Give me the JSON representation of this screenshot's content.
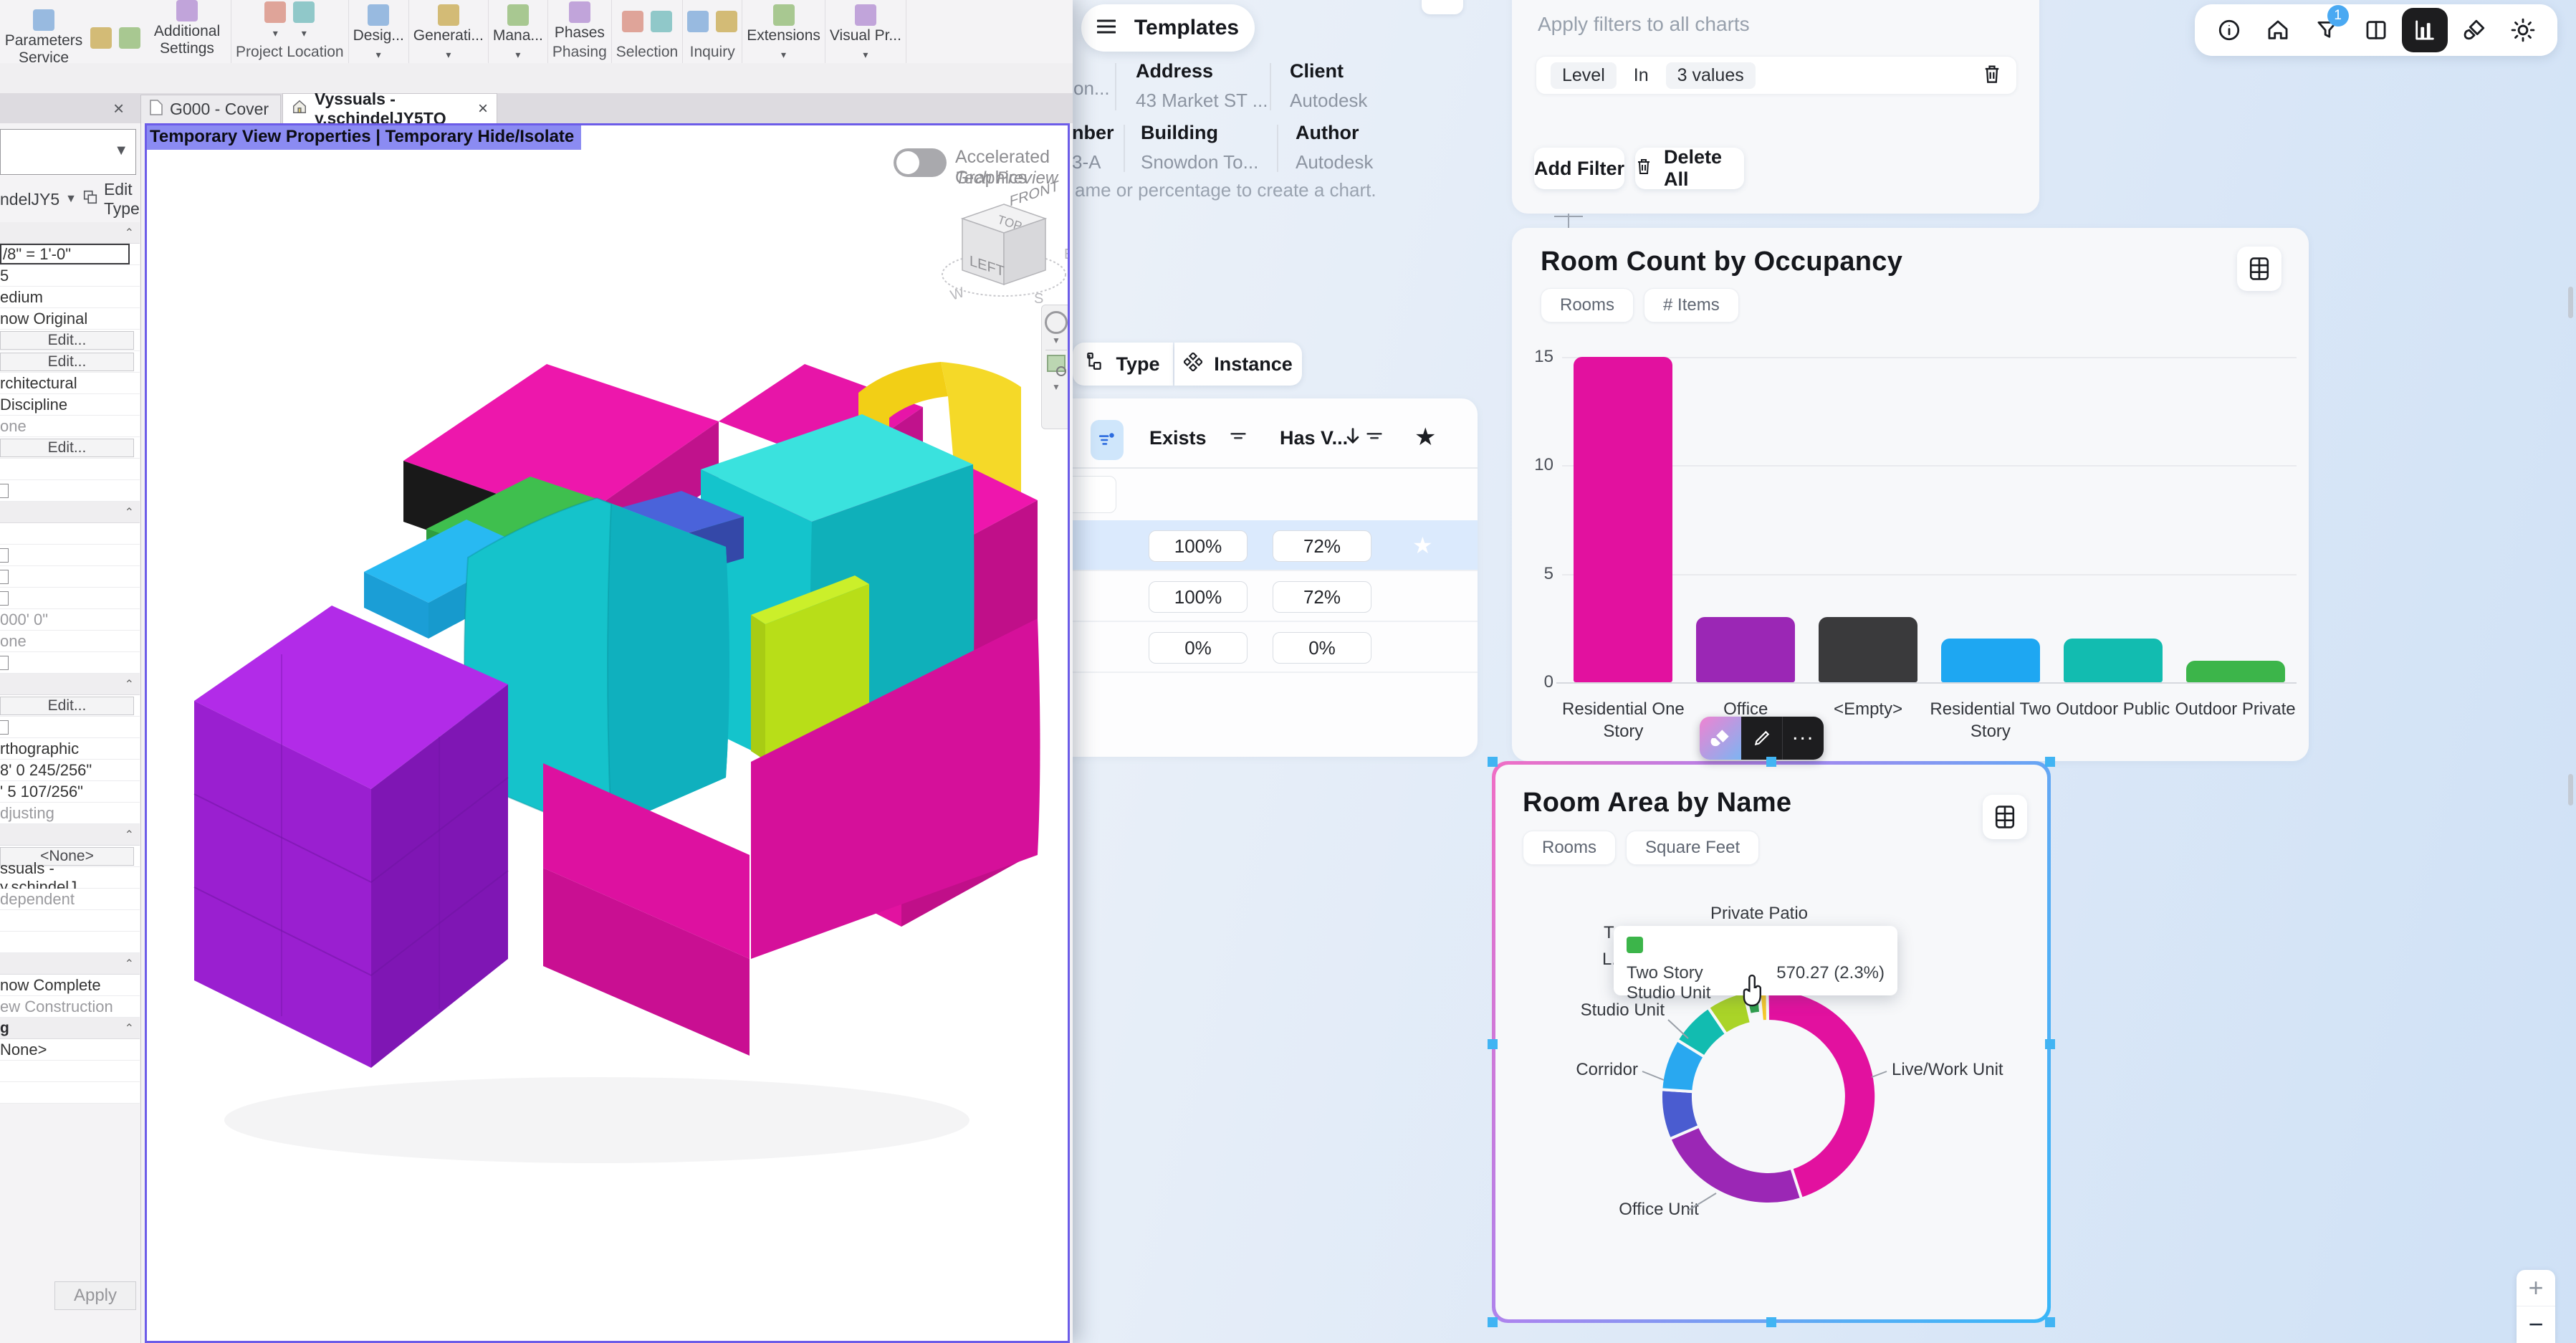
{
  "colors": {
    "accent_purple_border": "#6c5ce8",
    "dashboard_bg": "#e8eef7",
    "card_bg": "#f7f8fa",
    "selection_blue": "#41b4f3",
    "highlight_row": "#dbeafd",
    "badge_blue": "#4aa9f2"
  },
  "revit": {
    "ribbon": {
      "groups": [
        {
          "group_label": "Settings",
          "buttons": [
            {
              "label": "Parameters Service",
              "icon": "parameters-service-icon"
            },
            {
              "label": "",
              "icon": "settings-cluster-icon"
            },
            {
              "label": "",
              "icon": "settings-cluster2-icon"
            },
            {
              "label": "Additional Settings",
              "icon": "additional-settings-icon",
              "caret": true
            }
          ]
        },
        {
          "group_label": "Project Location",
          "buttons": [
            {
              "label": "",
              "icon": "coordinates-icon",
              "caret": true
            },
            {
              "label": "",
              "icon": "location-globe-icon",
              "caret": true
            }
          ]
        },
        {
          "group_label": "▼",
          "buttons": [
            {
              "label": "Desig...",
              "icon": "design-options-icon"
            }
          ]
        },
        {
          "group_label": "▼",
          "buttons": [
            {
              "label": "Generati...",
              "icon": "generative-design-icon"
            }
          ]
        },
        {
          "group_label": "▼",
          "buttons": [
            {
              "label": "Mana...",
              "icon": "manage-links-icon"
            }
          ]
        },
        {
          "group_label": "Phasing",
          "buttons": [
            {
              "label": "Phases",
              "icon": "phases-icon"
            }
          ]
        },
        {
          "group_label": "Selection",
          "buttons": [
            {
              "label": "",
              "icon": "selection-save-icon"
            },
            {
              "label": "",
              "icon": "selection-load-icon"
            }
          ]
        },
        {
          "group_label": "Inquiry",
          "buttons": [
            {
              "label": "",
              "icon": "element-ids-icon"
            },
            {
              "label": "",
              "icon": "warnings-icon"
            }
          ]
        },
        {
          "group_label": "▼",
          "buttons": [
            {
              "label": "Extensions",
              "icon": "extensions-icon"
            }
          ]
        },
        {
          "group_label": "▼",
          "buttons": [
            {
              "label": "Visual Pr...",
              "icon": "visual-programming-icon"
            }
          ]
        }
      ]
    },
    "tabs": [
      {
        "label": "G000 - Cover"
      },
      {
        "label": "Vyssuals - y.schindelJY5TQ",
        "close": "×"
      }
    ],
    "panel_close": "×",
    "viewport": {
      "overlay_text": "Temporary View Properties | Temporary Hide/Isolate",
      "accel_label": "Accelerated Graphics",
      "accel_sub": "Tech Preview",
      "viewcube": {
        "top": "TOP",
        "left": "LEFT",
        "front": "FRONT",
        "compass": [
          "W",
          "S",
          "E"
        ]
      }
    },
    "properties": {
      "type_selector": "ndelJY5",
      "edit_type": "Edit Type",
      "apply": "Apply",
      "rows": [
        {
          "t": "",
          "k": "header"
        },
        {
          "t": "/8\" = 1'-0\"",
          "k": "input"
        },
        {
          "t": "5",
          "k": "value"
        },
        {
          "t": "edium",
          "k": "value"
        },
        {
          "t": "now Original",
          "k": "value"
        },
        {
          "t": "Edit...",
          "k": "button"
        },
        {
          "t": "Edit...",
          "k": "button"
        },
        {
          "t": "rchitectural",
          "k": "value"
        },
        {
          "t": "Discipline",
          "k": "value"
        },
        {
          "t": "one",
          "k": "muted"
        },
        {
          "t": "Edit...",
          "k": "button"
        },
        {
          "t": "",
          "k": "blank"
        },
        {
          "t": "",
          "k": "check"
        },
        {
          "t": "",
          "k": "header"
        },
        {
          "t": "",
          "k": "blank"
        },
        {
          "t": "",
          "k": "check"
        },
        {
          "t": "",
          "k": "check"
        },
        {
          "t": "",
          "k": "check"
        },
        {
          "t": "000' 0\"",
          "k": "muted"
        },
        {
          "t": "one",
          "k": "muted"
        },
        {
          "t": "",
          "k": "check"
        },
        {
          "t": "",
          "k": "header"
        },
        {
          "t": "Edit...",
          "k": "button"
        },
        {
          "t": "",
          "k": "check"
        },
        {
          "t": "rthographic",
          "k": "value"
        },
        {
          "t": "8' 0 245/256\"",
          "k": "value"
        },
        {
          "t": "' 5 107/256\"",
          "k": "value"
        },
        {
          "t": "djusting",
          "k": "muted"
        },
        {
          "t": "",
          "k": "header"
        },
        {
          "t": "<None>",
          "k": "button"
        },
        {
          "t": "ssuals - y.schindelJ...",
          "k": "value"
        },
        {
          "t": "dependent",
          "k": "muted"
        },
        {
          "t": "",
          "k": "blank"
        },
        {
          "t": "",
          "k": "blank"
        },
        {
          "t": "",
          "k": "header"
        },
        {
          "t": "now Complete",
          "k": "value"
        },
        {
          "t": "ew Construction",
          "k": "muted"
        },
        {
          "t": "g",
          "k": "header"
        },
        {
          "t": "None>",
          "k": "value"
        },
        {
          "t": "",
          "k": "blank"
        },
        {
          "t": "",
          "k": "blank"
        }
      ]
    }
  },
  "dashboard": {
    "templates_button": "Templates",
    "project_info": {
      "fields": [
        {
          "label": "",
          "value": "on..."
        },
        {
          "label": "Address",
          "value": "43 Market ST ..."
        },
        {
          "label": "Client",
          "value": "Autodesk"
        },
        {
          "label": "nber",
          "value": "3-A"
        },
        {
          "label": "Building",
          "value": "Snowdon To..."
        },
        {
          "label": "Author",
          "value": "Autodesk"
        }
      ]
    },
    "hint_text": "ame or percentage to create a chart.",
    "view_toggle": [
      {
        "label": "Type",
        "icon": "type-hierarchy-icon"
      },
      {
        "label": "Instance",
        "icon": "instance-diamonds-icon"
      }
    ],
    "table": {
      "headers": [
        "Exists",
        "Has V..."
      ],
      "rows": [
        [
          "100%",
          "72%"
        ],
        [
          "100%",
          "72%"
        ],
        [
          "0%",
          "0%"
        ]
      ]
    },
    "filters": {
      "title": "Apply filters to all charts",
      "chip": {
        "field": "Level",
        "op": "In",
        "value": "3 values"
      },
      "add_button": "Add Filter",
      "delete_button": "Delete All"
    },
    "toolbar": {
      "icons": [
        "info-icon",
        "home-icon",
        "filter-funnel-icon",
        "columns-layout-icon",
        "bar-chart-icon",
        "paintbrush-icon",
        "brightness-sun-icon"
      ],
      "active_icon": "bar-chart-icon",
      "filter_badge": "1"
    },
    "hover_toolbar": {
      "icons": [
        "paintbrush-icon",
        "pencil-icon",
        "more-dots-icon"
      ]
    },
    "zoom_controls": [
      "+",
      "−"
    ]
  },
  "chart_data": [
    {
      "type": "bar",
      "title": "Room Count by Occupancy",
      "chips": [
        "Rooms",
        "# Items"
      ],
      "categories": [
        "Residential One Story",
        "Office",
        "<Empty>",
        "Residential Two Story",
        "Outdoor Public",
        "Outdoor Private"
      ],
      "values": [
        15,
        3,
        3,
        2,
        2,
        1
      ],
      "colors": [
        "#e2119f",
        "#9b27b5",
        "#3a3a3c",
        "#1ea7f2",
        "#12bcb0",
        "#3cb54a"
      ],
      "xlabel": "",
      "ylabel": "",
      "ylim": [
        0,
        15
      ],
      "yticks": [
        0,
        5,
        10,
        15
      ],
      "grid": true,
      "legend": "none"
    },
    {
      "type": "pie",
      "title": "Room Area by Name",
      "chips": [
        "Rooms",
        "Square Feet"
      ],
      "donut": true,
      "start_deg": 359.4,
      "slices": [
        {
          "label": "Live/Work Unit",
          "pct": 45.2,
          "color": "#e2119f",
          "lbl": [
            550,
            403,
            "start"
          ],
          "leader": [
            [
              522,
              406
            ],
            [
              543,
              398
            ]
          ]
        },
        {
          "label": "Office Unit",
          "pct": 23.5,
          "color": "#9b27b5",
          "lbl": [
            225,
            598,
            "middle"
          ],
          "leader": [
            [
              305,
              568
            ],
            [
              266,
              592
            ]
          ]
        },
        {
          "label": "Corridor",
          "pct": 7.5,
          "color": "#4a5cd0",
          "lbl": [
            196,
            403,
            "end"
          ],
          "leader": [
            [
              202,
              398
            ],
            [
              232,
              410
            ]
          ]
        },
        {
          "label": "Studio Unit",
          "pct": 7.8,
          "color": "#29a8f0",
          "lbl": [
            233,
            320,
            "end"
          ],
          "leader": [
            [
              238,
              326
            ],
            [
              266,
              352
            ]
          ]
        },
        {
          "label": "T...",
          "pct": 6.7,
          "color": "#12bcb0",
          "lbl": [
            148,
            212,
            "start"
          ],
          "leader": [
            [
              240,
              250
            ],
            [
              210,
              222
            ]
          ]
        },
        {
          "label": "L...",
          "pct": 5.8,
          "color": "#aad428",
          "lbl": [
            146,
            249,
            "start"
          ],
          "leader": [
            [
              290,
              236
            ],
            [
              250,
              248
            ]
          ]
        },
        {
          "label": "Two Story Studio Unit",
          "pct": 2.3,
          "color": "#2f9e4e",
          "hovered": true,
          "lbl": null,
          "leader": null
        },
        {
          "label": "Private Patio",
          "pct": 1.2,
          "color": "#f5c82b",
          "lbl": [
            365,
            185,
            "middle"
          ],
          "leader": [
            [
              378,
              196
            ],
            [
              381,
              281
            ]
          ]
        }
      ],
      "tooltip": {
        "swatch": "#3cb54a",
        "label": "Two Story Studio Unit",
        "value": "570.27 (2.3%)"
      }
    }
  ]
}
